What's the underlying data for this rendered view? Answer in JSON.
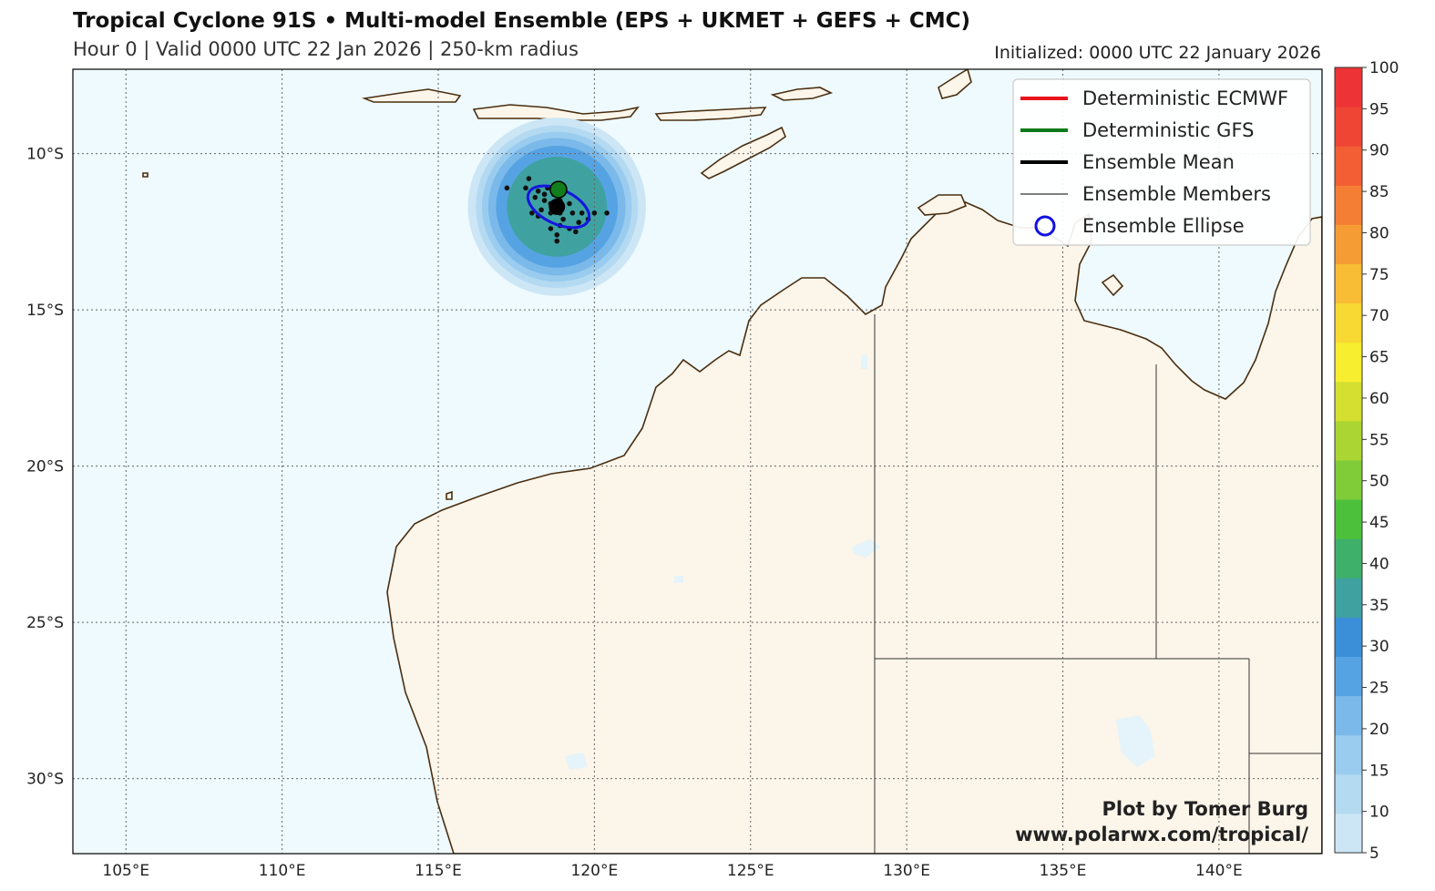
{
  "header": {
    "title": "Tropical Cyclone 91S • Multi-model Ensemble (EPS + UKMET + GEFS + CMC)",
    "subtitle": "Hour 0 | Valid 0000 UTC 22 Jan 2026 | 250-km radius",
    "initialized": "Initialized: 0000 UTC 22 January 2026"
  },
  "map": {
    "extent": {
      "lon_min": 103.3,
      "lon_max": 143.3,
      "lat_min": -32.4,
      "lat_max": -7.3
    },
    "lon_ticks": [
      {
        "value": 105,
        "label": "105°E"
      },
      {
        "value": 110,
        "label": "110°E"
      },
      {
        "value": 115,
        "label": "115°E"
      },
      {
        "value": 120,
        "label": "120°E"
      },
      {
        "value": 125,
        "label": "125°E"
      },
      {
        "value": 130,
        "label": "130°E"
      },
      {
        "value": 135,
        "label": "135°E"
      },
      {
        "value": 140,
        "label": "140°E"
      }
    ],
    "lat_ticks": [
      {
        "value": -10,
        "label": "10°S"
      },
      {
        "value": -15,
        "label": "15°S"
      },
      {
        "value": -20,
        "label": "20°S"
      },
      {
        "value": -25,
        "label": "25°S"
      },
      {
        "value": -30,
        "label": "30°S"
      }
    ],
    "colors": {
      "ocean": "#eefafd",
      "land": "#fcf5ea",
      "coast": "#4a2e10",
      "grid": "#666666"
    }
  },
  "storm": {
    "mean_center": {
      "lon": 118.8,
      "lat": -11.7
    },
    "gfs_point": {
      "lon": 118.85,
      "lat": -11.15
    },
    "strike_probability_rings": [
      {
        "value": 5,
        "radius_deg": 2.85
      },
      {
        "value": 10,
        "radius_deg": 2.6
      },
      {
        "value": 15,
        "radius_deg": 2.4
      },
      {
        "value": 20,
        "radius_deg": 2.2
      },
      {
        "value": 25,
        "radius_deg": 1.95
      },
      {
        "value": 35,
        "radius_deg": 1.6
      }
    ],
    "ellipse": {
      "lon": 118.85,
      "lat": -11.7,
      "rx_deg": 1.05,
      "ry_deg": 0.55,
      "angle": 25
    },
    "members": [
      {
        "lon": 117.2,
        "lat": -11.1
      },
      {
        "lon": 117.9,
        "lat": -10.8
      },
      {
        "lon": 117.8,
        "lat": -11.1
      },
      {
        "lon": 118.2,
        "lat": -11.2
      },
      {
        "lon": 118.5,
        "lat": -11.1
      },
      {
        "lon": 118.1,
        "lat": -11.4
      },
      {
        "lon": 118.4,
        "lat": -11.5
      },
      {
        "lon": 118.6,
        "lat": -11.6
      },
      {
        "lon": 118.9,
        "lat": -11.5
      },
      {
        "lon": 119.2,
        "lat": -11.6
      },
      {
        "lon": 118.3,
        "lat": -11.8
      },
      {
        "lon": 118.6,
        "lat": -11.9
      },
      {
        "lon": 118.9,
        "lat": -11.9
      },
      {
        "lon": 119.3,
        "lat": -11.9
      },
      {
        "lon": 119.6,
        "lat": -11.9
      },
      {
        "lon": 120.0,
        "lat": -11.9
      },
      {
        "lon": 120.4,
        "lat": -11.9
      },
      {
        "lon": 118.0,
        "lat": -11.9
      },
      {
        "lon": 118.2,
        "lat": -12.0
      },
      {
        "lon": 119.0,
        "lat": -12.1
      },
      {
        "lon": 119.5,
        "lat": -12.2
      },
      {
        "lon": 119.8,
        "lat": -12.1
      },
      {
        "lon": 118.6,
        "lat": -12.4
      },
      {
        "lon": 118.9,
        "lat": -12.3
      },
      {
        "lon": 119.2,
        "lat": -12.4
      },
      {
        "lon": 118.8,
        "lat": -12.6
      },
      {
        "lon": 118.8,
        "lat": -12.8
      },
      {
        "lon": 119.4,
        "lat": -12.5
      },
      {
        "lon": 118.4,
        "lat": -11.3
      },
      {
        "lon": 118.7,
        "lat": -11.3
      }
    ]
  },
  "legend": {
    "items": [
      {
        "label": "Deterministic ECMWF",
        "color": "#e8141b",
        "style": "thick"
      },
      {
        "label": "Deterministic GFS",
        "color": "#0c7a19",
        "style": "thick"
      },
      {
        "label": "Ensemble Mean",
        "color": "#000000",
        "style": "thick"
      },
      {
        "label": "Ensemble Members",
        "color": "#000000",
        "style": "thin"
      },
      {
        "label": "Ensemble Ellipse",
        "color": "#1010e0",
        "style": "circle"
      }
    ]
  },
  "colorbar": {
    "levels": [
      5,
      10,
      15,
      20,
      25,
      30,
      35,
      40,
      45,
      50,
      55,
      60,
      65,
      70,
      75,
      80,
      85,
      90,
      95,
      100
    ],
    "colors": [
      "#cde6f6",
      "#b4daf2",
      "#99ccee",
      "#7ab9ea",
      "#56a3e3",
      "#3a8fd8",
      "#3fa2a0",
      "#3fb06a",
      "#4cc03b",
      "#7fcb38",
      "#aad532",
      "#d4df30",
      "#f7ee2f",
      "#f8d832",
      "#f8bc35",
      "#f69c35",
      "#f57e35",
      "#f35e34",
      "#ef4535",
      "#ee3336"
    ]
  },
  "credit": {
    "line1": "Plot by Tomer Burg",
    "line2": "www.polarwx.com/tropical/"
  }
}
